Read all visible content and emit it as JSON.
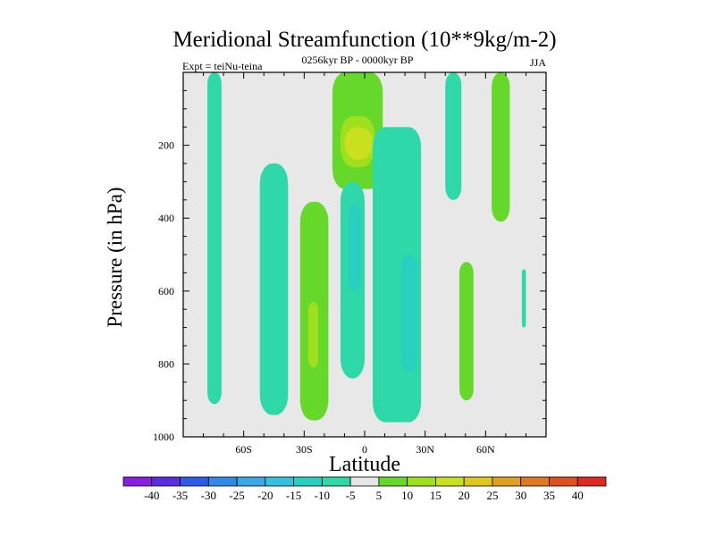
{
  "chart_data": {
    "type": "contour",
    "title": "Meridional Streamfunction (10**9kg/m-2)",
    "subtitle_left": "Expt = teiNu-teina",
    "subtitle_center": "0256kyr BP - 0000kyr BP",
    "subtitle_right": "JJA",
    "xlabel": "Latitude",
    "ylabel": "Pressure (in hPa)",
    "xlim": [
      -90,
      90
    ],
    "ylim": [
      1000,
      0
    ],
    "x_ticks": [
      {
        "value": -60,
        "label": "60S"
      },
      {
        "value": -30,
        "label": "30S"
      },
      {
        "value": 0,
        "label": "0"
      },
      {
        "value": 30,
        "label": "30N"
      },
      {
        "value": 60,
        "label": "60N"
      }
    ],
    "y_ticks": [
      {
        "value": 200,
        "label": "200"
      },
      {
        "value": 400,
        "label": "400"
      },
      {
        "value": 600,
        "label": "600"
      },
      {
        "value": 800,
        "label": "800"
      },
      {
        "value": 1000,
        "label": "1000"
      }
    ],
    "colorbar": {
      "labels": [
        "-40",
        "-35",
        "-30",
        "-25",
        "-20",
        "-15",
        "-10",
        "-5",
        "5",
        "10",
        "15",
        "20",
        "25",
        "30",
        "35",
        "40"
      ],
      "colors": [
        "#8a1ee0",
        "#5a2ee0",
        "#2e5ce8",
        "#2f8ae6",
        "#3aa8e6",
        "#35c0e0",
        "#28d0c0",
        "#2fd8a8",
        "#e6e6e6",
        "#66d82a",
        "#9ee01e",
        "#c8e01e",
        "#e0c81a",
        "#e0a01e",
        "#e07a1e",
        "#e0501e",
        "#e0281e"
      ]
    },
    "regions": [
      {
        "level": "-5",
        "lat_min": -78,
        "lat_max": -71,
        "p_top": 0,
        "p_bottom": 910
      },
      {
        "level": "-5",
        "lat_min": -52,
        "lat_max": -38,
        "p_top": 250,
        "p_bottom": 940
      },
      {
        "level": "5",
        "lat_min": -32,
        "lat_max": -18,
        "p_top": 355,
        "p_bottom": 955
      },
      {
        "level": "10",
        "lat_min": -28,
        "lat_max": -23,
        "p_top": 630,
        "p_bottom": 810
      },
      {
        "level": "5",
        "lat_min": -16,
        "lat_max": 9,
        "p_top": 0,
        "p_bottom": 320
      },
      {
        "level": "10",
        "lat_min": -12,
        "lat_max": 5,
        "p_top": 120,
        "p_bottom": 260
      },
      {
        "level": "15",
        "lat_min": -10,
        "lat_max": 4,
        "p_top": 150,
        "p_bottom": 240
      },
      {
        "level": "-5",
        "lat_min": -12,
        "lat_max": 0,
        "p_top": 300,
        "p_bottom": 840
      },
      {
        "level": "-10",
        "lat_min": -8,
        "lat_max": -2,
        "p_top": 360,
        "p_bottom": 600
      },
      {
        "level": "-5",
        "lat_min": 4,
        "lat_max": 28,
        "p_top": 150,
        "p_bottom": 960
      },
      {
        "level": "-10",
        "lat_min": 18,
        "lat_max": 26,
        "p_top": 500,
        "p_bottom": 820
      },
      {
        "level": "-5",
        "lat_min": 40,
        "lat_max": 48,
        "p_top": 0,
        "p_bottom": 350
      },
      {
        "level": "5",
        "lat_min": 47,
        "lat_max": 54,
        "p_top": 520,
        "p_bottom": 900
      },
      {
        "level": "5",
        "lat_min": 63,
        "lat_max": 72,
        "p_top": 0,
        "p_bottom": 410
      },
      {
        "level": "-5",
        "lat_min": 78,
        "lat_max": 80,
        "p_top": 540,
        "p_bottom": 700
      }
    ]
  }
}
